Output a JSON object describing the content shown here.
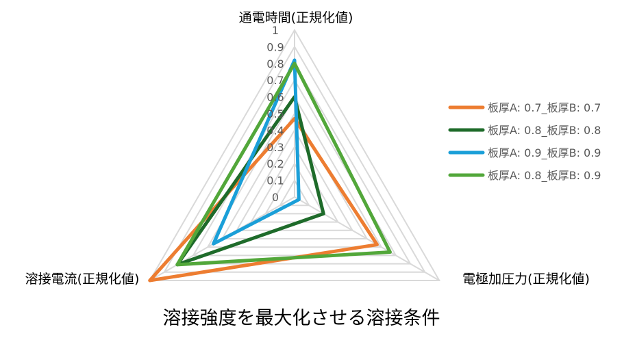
{
  "chart_data": {
    "type": "radar",
    "title": "溶接強度を最大化させる溶接条件",
    "axes": [
      "通電時間(正規化値)",
      "電極加圧力(正規化値)",
      "溶接電流(正規化値)"
    ],
    "rlim": [
      0,
      1
    ],
    "ticks": [
      "0",
      "0.1",
      "0.2",
      "0.3",
      "0.4",
      "0.5",
      "0.6",
      "0.7",
      "0.8",
      "0.9",
      "1"
    ],
    "tick_values": [
      0,
      0.1,
      0.2,
      0.3,
      0.4,
      0.5,
      0.6,
      0.7,
      0.8,
      0.9,
      1
    ],
    "grid": true,
    "legend_position": "right",
    "series": [
      {
        "name": "板厚A: 0.7_板厚B: 0.7",
        "color": "#ED7D31",
        "values": [
          0.47,
          0.57,
          1.0
        ]
      },
      {
        "name": "板厚A: 0.8_板厚B: 0.8",
        "color": "#1E6B2A",
        "values": [
          0.6,
          0.2,
          0.81
        ]
      },
      {
        "name": "板厚A: 0.9_板厚B: 0.9",
        "color": "#1A9FD8",
        "values": [
          0.82,
          0.03,
          0.56
        ]
      },
      {
        "name": "板厚A: 0.8_板厚B: 0.9",
        "color": "#52A73A",
        "values": [
          0.8,
          0.66,
          0.81
        ]
      }
    ]
  }
}
